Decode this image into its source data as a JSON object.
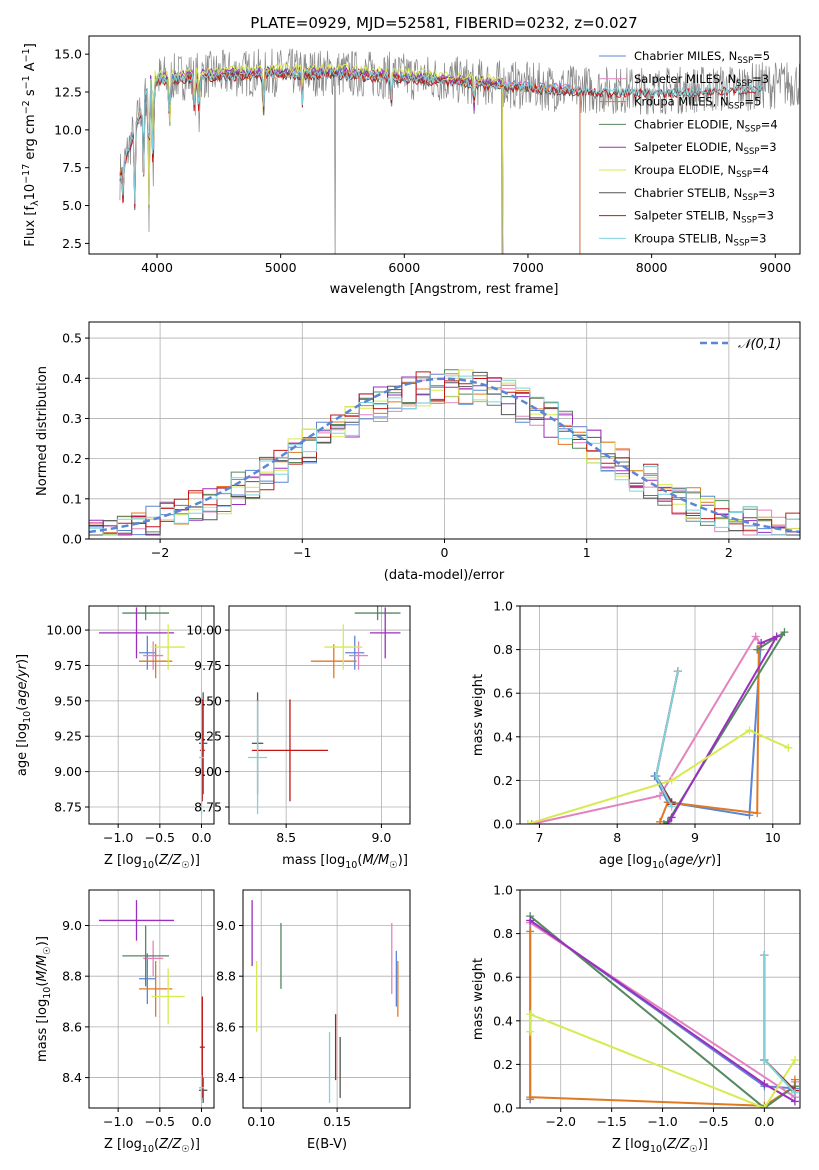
{
  "colors": {
    "Chabrier MILES": "#5b86d6",
    "Salpeter MILES": "#e482c0",
    "Kroupa MILES": "#e07a22",
    "Chabrier ELODIE": "#56885f",
    "Salpeter ELODIE": "#9b2fc0",
    "Kroupa ELODIE": "#d8ea52",
    "Chabrier STELIB": "#555555",
    "Salpeter STELIB": "#c01818",
    "Kroupa STELIB": "#7fd3df",
    "normal": "#5b86d6",
    "grid": "#b0b0b0"
  },
  "chart_data": [
    {
      "id": "spectrum",
      "type": "line",
      "title": "PLATE=0929, MJD=52581, FIBERID=0232, z=0.027",
      "xlabel": "wavelength [Angstrom, rest frame]",
      "ylabel": "Flux [f_λ10^-17 erg cm^-2 s^-1 A^-1]",
      "xlim": [
        3450,
        9200
      ],
      "ylim": [
        1.8,
        16.2
      ],
      "xticks": [
        "4000",
        "5000",
        "6000",
        "7000",
        "8000",
        "9000"
      ],
      "yticks": [
        "2.5",
        "5.0",
        "7.5",
        "10.0",
        "12.5",
        "15.0"
      ],
      "grid": false,
      "legend_position": "top-right",
      "series": [
        {
          "name": "Chabrier MILES, N_SSP=5",
          "sub": "SSP",
          "base": "Chabrier MILES, N",
          "rest": "=5",
          "x": [
            3700,
            7420
          ],
          "level": 13.2
        },
        {
          "name": "Salpeter MILES, N_SSP=3",
          "sub": "SSP",
          "base": "Salpeter MILES, N",
          "rest": "=3",
          "x": [
            3700,
            7420
          ],
          "level": 13.2
        },
        {
          "name": "Kroupa MILES, N_SSP=5",
          "sub": "SSP",
          "base": "Kroupa MILES, N",
          "rest": "=5",
          "x": [
            3700,
            7420
          ],
          "level": 13.1
        },
        {
          "name": "Chabrier ELODIE, N_SSP=4",
          "sub": "SSP",
          "base": "Chabrier ELODIE, N",
          "rest": "=4",
          "x": [
            3900,
            6800
          ],
          "level": 13.3
        },
        {
          "name": "Salpeter ELODIE, N_SSP=3",
          "sub": "SSP",
          "base": "Salpeter ELODIE, N",
          "rest": "=3",
          "x": [
            3900,
            6800
          ],
          "level": 13.3
        },
        {
          "name": "Kroupa ELODIE, N_SSP=4",
          "sub": "SSP",
          "base": "Kroupa ELODIE, N",
          "rest": "=4",
          "x": [
            3900,
            6800
          ],
          "level": 13.5
        },
        {
          "name": "Chabrier STELIB, N_SSP=3",
          "sub": "SSP",
          "base": "Chabrier STELIB, N",
          "rest": "=3",
          "x": [
            3700,
            8900
          ],
          "level": 13.0
        },
        {
          "name": "Salpeter STELIB, N_SSP=3",
          "sub": "SSP",
          "base": "Salpeter STELIB, N",
          "rest": "=3",
          "x": [
            3700,
            8900
          ],
          "level": 13.0
        },
        {
          "name": "Kroupa STELIB, N_SSP=3",
          "sub": "SSP",
          "base": "Kroupa STELIB, N",
          "rest": "=3",
          "x": [
            3700,
            8900
          ],
          "level": 13.1
        }
      ],
      "observed": {
        "x": [
          3700,
          9200
        ],
        "level": 13.3
      }
    },
    {
      "id": "residuals",
      "type": "area",
      "xlabel": "(data-model)/error",
      "ylabel": "Normed distribution",
      "xlim": [
        -2.5,
        2.5
      ],
      "ylim": [
        0,
        0.54
      ],
      "xticks": [
        "−2",
        "−1",
        "0",
        "1",
        "2"
      ],
      "yticks": [
        "0.0",
        "0.1",
        "0.2",
        "0.3",
        "0.4",
        "0.5"
      ],
      "grid": true,
      "legend": "𝒩(0,1)",
      "legend_position": "top-right",
      "bin_width": 0.1,
      "bins_from": -2.5
    },
    {
      "id": "age-vs-Z",
      "type": "scatter",
      "xlabel": "Z [log10(Z/Z☉)]",
      "ylabel": "age [log10(age/yr)]",
      "xlim": [
        -1.35,
        0.15
      ],
      "ylim": [
        8.63,
        10.17
      ],
      "xticks": [
        "−1.0",
        "−0.5",
        "0.0"
      ],
      "yticks": [
        "8.75",
        "9.00",
        "9.25",
        "9.50",
        "9.75",
        "10.00"
      ],
      "grid": true,
      "points": [
        {
          "s": "Chabrier MILES",
          "x": -0.65,
          "xerr": 0.1,
          "y": 9.84,
          "yerr": 0.12
        },
        {
          "s": "Salpeter MILES",
          "x": -0.58,
          "xerr": 0.12,
          "y": 9.82,
          "yerr": 0.1
        },
        {
          "s": "Kroupa MILES",
          "x": -0.55,
          "xerr": 0.2,
          "y": 9.78,
          "yerr": 0.12
        },
        {
          "s": "Chabrier ELODIE",
          "x": -0.67,
          "xerr": 0.28,
          "y": 10.12,
          "yerr": 0.05
        },
        {
          "s": "Salpeter ELODIE",
          "x": -0.78,
          "xerr": 0.45,
          "y": 9.98,
          "yerr": 0.18
        },
        {
          "s": "Kroupa ELODIE",
          "x": -0.4,
          "xerr": 0.2,
          "y": 9.88,
          "yerr": 0.16
        },
        {
          "s": "Chabrier STELIB",
          "x": 0.02,
          "xerr": 0.05,
          "y": 9.2,
          "yerr": 0.36
        },
        {
          "s": "Salpeter STELIB",
          "x": 0.01,
          "xerr": 0.03,
          "y": 9.15,
          "yerr": 0.36
        },
        {
          "s": "Kroupa STELIB",
          "x": 0.0,
          "xerr": 0.03,
          "y": 9.1,
          "yerr": 0.4
        }
      ]
    },
    {
      "id": "age-vs-mass",
      "type": "scatter",
      "xlabel": "mass [log10(M/M☉)]",
      "ylabel": "",
      "xlim": [
        8.2,
        9.15
      ],
      "ylim": [
        8.63,
        10.17
      ],
      "xticks": [
        "8.5",
        "9.0"
      ],
      "yticks": [
        "8.75",
        "9.00",
        "9.25",
        "9.50",
        "9.75",
        "10.00"
      ],
      "grid": true,
      "points": [
        {
          "s": "Chabrier MILES",
          "x": 8.86,
          "xerr": 0.05,
          "y": 9.84,
          "yerr": 0.12
        },
        {
          "s": "Salpeter MILES",
          "x": 8.88,
          "xerr": 0.05,
          "y": 9.82,
          "yerr": 0.1
        },
        {
          "s": "Kroupa MILES",
          "x": 8.75,
          "xerr": 0.12,
          "y": 9.78,
          "yerr": 0.12
        },
        {
          "s": "Chabrier ELODIE",
          "x": 8.98,
          "xerr": 0.12,
          "y": 10.12,
          "yerr": 0.05
        },
        {
          "s": "Salpeter ELODIE",
          "x": 9.02,
          "xerr": 0.08,
          "y": 9.98,
          "yerr": 0.18
        },
        {
          "s": "Kroupa ELODIE",
          "x": 8.8,
          "xerr": 0.1,
          "y": 9.88,
          "yerr": 0.16
        },
        {
          "s": "Chabrier STELIB",
          "x": 8.35,
          "xerr": 0.03,
          "y": 9.2,
          "yerr": 0.36
        },
        {
          "s": "Salpeter STELIB",
          "x": 8.52,
          "xerr": 0.2,
          "y": 9.15,
          "yerr": 0.36
        },
        {
          "s": "Kroupa STELIB",
          "x": 8.35,
          "xerr": 0.05,
          "y": 9.1,
          "yerr": 0.4
        }
      ]
    },
    {
      "id": "weight-vs-age",
      "type": "line",
      "xlabel": "age [log10(age/yr)]",
      "ylabel": "mass weight",
      "xlim": [
        6.75,
        10.35
      ],
      "ylim": [
        0,
        1.0
      ],
      "xticks": [
        "7",
        "8",
        "9",
        "10"
      ],
      "yticks": [
        "0.0",
        "0.2",
        "0.4",
        "0.6",
        "0.8",
        "1.0"
      ],
      "grid": true,
      "series": [
        {
          "s": "Chabrier MILES",
          "x": [
            8.48,
            8.65,
            9.7,
            9.84
          ],
          "y": [
            0.22,
            0.1,
            0.04,
            0.8
          ]
        },
        {
          "s": "Salpeter MILES",
          "x": [
            6.9,
            8.55,
            9.78,
            9.85
          ],
          "y": [
            0.0,
            0.13,
            0.86,
            0.82
          ]
        },
        {
          "s": "Kroupa MILES",
          "x": [
            8.55,
            8.65,
            9.8,
            9.82
          ],
          "y": [
            0.01,
            0.1,
            0.05,
            0.8
          ]
        },
        {
          "s": "Chabrier ELODIE",
          "x": [
            8.6,
            8.65,
            10.15,
            9.8
          ],
          "y": [
            0.0,
            0.01,
            0.88,
            0.8
          ]
        },
        {
          "s": "Salpeter ELODIE",
          "x": [
            8.65,
            8.7,
            10.05,
            9.85
          ],
          "y": [
            0.0,
            0.03,
            0.86,
            0.83
          ]
        },
        {
          "s": "Kroupa ELODIE",
          "x": [
            6.85,
            8.7,
            9.7,
            10.2
          ],
          "y": [
            0.0,
            0.2,
            0.43,
            0.35
          ]
        },
        {
          "s": "Chabrier STELIB",
          "x": [
            8.7,
            8.5,
            8.78
          ],
          "y": [
            0.1,
            0.22,
            0.7
          ]
        },
        {
          "s": "Salpeter STELIB",
          "x": [
            8.7,
            8.5,
            8.78
          ],
          "y": [
            0.09,
            0.22,
            0.7
          ]
        },
        {
          "s": "Kroupa STELIB",
          "x": [
            8.7,
            8.5,
            8.78
          ],
          "y": [
            0.08,
            0.22,
            0.7
          ]
        }
      ]
    },
    {
      "id": "mass-vs-Z",
      "type": "scatter",
      "xlabel": "Z [log10(Z/Z☉)]",
      "ylabel": "mass [log10(M/M☉)]",
      "xlim": [
        -1.35,
        0.15
      ],
      "ylim": [
        8.28,
        9.14
      ],
      "xticks": [
        "−1.0",
        "−0.5",
        "0.0"
      ],
      "yticks": [
        "8.4",
        "8.6",
        "8.8",
        "9.0"
      ],
      "grid": true,
      "points": [
        {
          "s": "Chabrier MILES",
          "x": -0.65,
          "xerr": 0.1,
          "y": 8.79,
          "yerr": 0.1
        },
        {
          "s": "Salpeter MILES",
          "x": -0.58,
          "xerr": 0.12,
          "y": 8.87,
          "yerr": 0.07
        },
        {
          "s": "Kroupa MILES",
          "x": -0.55,
          "xerr": 0.2,
          "y": 8.75,
          "yerr": 0.11
        },
        {
          "s": "Chabrier ELODIE",
          "x": -0.67,
          "xerr": 0.28,
          "y": 8.88,
          "yerr": 0.12
        },
        {
          "s": "Salpeter ELODIE",
          "x": -0.78,
          "xerr": 0.45,
          "y": 9.02,
          "yerr": 0.08
        },
        {
          "s": "Kroupa ELODIE",
          "x": -0.4,
          "xerr": 0.2,
          "y": 8.72,
          "yerr": 0.11
        },
        {
          "s": "Chabrier STELIB",
          "x": 0.02,
          "xerr": 0.05,
          "y": 8.35,
          "yerr": 0.05
        },
        {
          "s": "Salpeter STELIB",
          "x": 0.01,
          "xerr": 0.03,
          "y": 8.52,
          "yerr": 0.2
        },
        {
          "s": "Kroupa STELIB",
          "x": 0.0,
          "xerr": 0.03,
          "y": 8.36,
          "yerr": 0.05
        }
      ]
    },
    {
      "id": "mass-vs-EBV",
      "type": "scatter",
      "xlabel": "E(B-V)",
      "ylabel": "",
      "xlim": [
        0.088,
        0.198
      ],
      "ylim": [
        8.28,
        9.14
      ],
      "xticks": [
        "0.10",
        "0.15"
      ],
      "yticks": [
        "8.4",
        "8.6",
        "8.8",
        "9.0"
      ],
      "grid": true,
      "points": [
        {
          "s": "Chabrier MILES",
          "x": 0.189,
          "xerr": 0,
          "y": 8.79,
          "yerr": 0.11
        },
        {
          "s": "Salpeter MILES",
          "x": 0.186,
          "xerr": 0,
          "y": 8.87,
          "yerr": 0.14
        },
        {
          "s": "Kroupa MILES",
          "x": 0.19,
          "xerr": 0,
          "y": 8.75,
          "yerr": 0.11
        },
        {
          "s": "Chabrier ELODIE",
          "x": 0.113,
          "xerr": 0,
          "y": 8.88,
          "yerr": 0.13
        },
        {
          "s": "Salpeter ELODIE",
          "x": 0.094,
          "xerr": 0,
          "y": 8.97,
          "yerr": 0.13
        },
        {
          "s": "Kroupa ELODIE",
          "x": 0.097,
          "xerr": 0,
          "y": 8.72,
          "yerr": 0.14
        },
        {
          "s": "Chabrier STELIB",
          "x": 0.152,
          "xerr": 0,
          "y": 8.44,
          "yerr": 0.12
        },
        {
          "s": "Salpeter STELIB",
          "x": 0.149,
          "xerr": 0,
          "y": 8.52,
          "yerr": 0.13
        },
        {
          "s": "Kroupa STELIB",
          "x": 0.145,
          "xerr": 0,
          "y": 8.44,
          "yerr": 0.14
        }
      ]
    },
    {
      "id": "weight-vs-Z",
      "type": "line",
      "xlabel": "Z [log10(Z/Z☉)]",
      "ylabel": "mass weight",
      "xlim": [
        -2.4,
        0.35
      ],
      "ylim": [
        0,
        1.0
      ],
      "xticks": [
        "−2.0",
        "−1.5",
        "−1.0",
        "−0.5",
        "0.0"
      ],
      "yticks": [
        "0.0",
        "0.2",
        "0.4",
        "0.6",
        "0.8",
        "1.0"
      ],
      "grid": true,
      "series": [
        {
          "s": "Chabrier MILES",
          "x": [
            -2.3,
            -2.3,
            0.0,
            0.3
          ],
          "y": [
            0.04,
            0.86,
            0.1,
            0.09
          ]
        },
        {
          "s": "Salpeter MILES",
          "x": [
            -2.3,
            0.3,
            0.3
          ],
          "y": [
            0.85,
            0.05,
            0.12
          ]
        },
        {
          "s": "Kroupa MILES",
          "x": [
            -2.3,
            -2.3,
            0.0,
            0.3,
            0.3
          ],
          "y": [
            0.81,
            0.05,
            0.01,
            0.1,
            0.13
          ]
        },
        {
          "s": "Chabrier ELODIE",
          "x": [
            -2.3,
            0.0,
            0.3
          ],
          "y": [
            0.88,
            0.0,
            0.1
          ]
        },
        {
          "s": "Salpeter ELODIE",
          "x": [
            -2.3,
            0.0,
            0.3
          ],
          "y": [
            0.86,
            0.11,
            0.03
          ]
        },
        {
          "s": "Kroupa ELODIE",
          "x": [
            -2.3,
            -2.3,
            0.0,
            0.3
          ],
          "y": [
            0.35,
            0.43,
            0.0,
            0.22
          ]
        },
        {
          "s": "Chabrier STELIB",
          "x": [
            0.0,
            0.0,
            0.3
          ],
          "y": [
            0.7,
            0.22,
            0.08
          ]
        },
        {
          "s": "Salpeter STELIB",
          "x": [
            0.0,
            0.0,
            0.3
          ],
          "y": [
            0.7,
            0.22,
            0.08
          ]
        },
        {
          "s": "Kroupa STELIB",
          "x": [
            0.0,
            0.0,
            0.3
          ],
          "y": [
            0.7,
            0.22,
            0.07
          ]
        }
      ]
    }
  ]
}
